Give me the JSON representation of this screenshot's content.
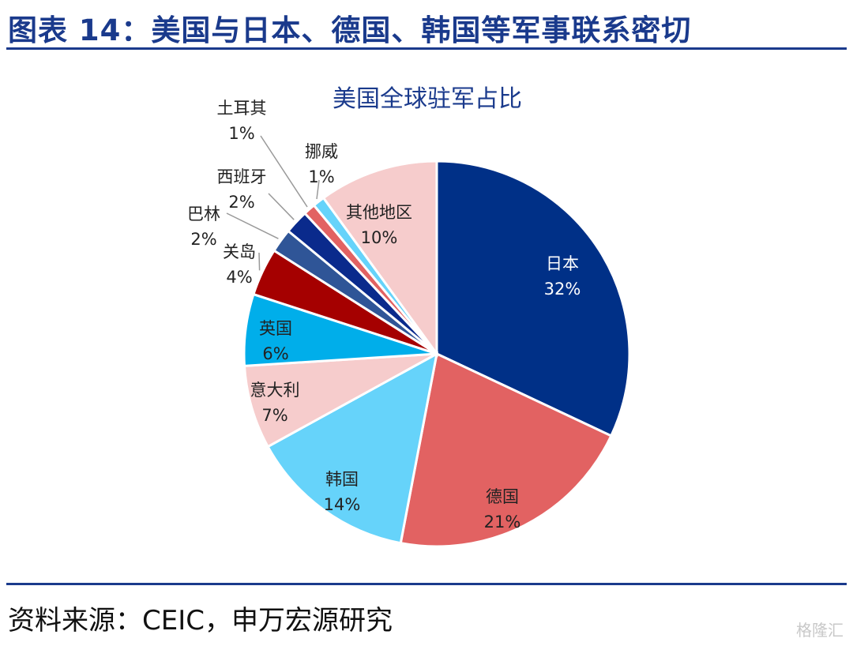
{
  "figure_title": "图表 14：美国与日本、德国、韩国等军事联系密切",
  "source": "资料来源：CEIC，申万宏源研究",
  "watermark": "格隆汇",
  "chart_data": {
    "type": "pie",
    "title": "美国全球驻军占比",
    "start_angle_deg": 0,
    "direction": "clockwise",
    "slices": [
      {
        "label": "日本",
        "value": 32,
        "value_label": "32%",
        "color": "#003087"
      },
      {
        "label": "德国",
        "value": 21,
        "value_label": "21%",
        "color": "#e26262"
      },
      {
        "label": "韩国",
        "value": 14,
        "value_label": "14%",
        "color": "#66d3fa"
      },
      {
        "label": "意大利",
        "value": 7,
        "value_label": "7%",
        "color": "#f6cccc"
      },
      {
        "label": "英国",
        "value": 6,
        "value_label": "6%",
        "color": "#00aeea"
      },
      {
        "label": "关岛",
        "value": 4,
        "value_label": "4%",
        "color": "#a50000"
      },
      {
        "label": "巴林",
        "value": 2,
        "value_label": "2%",
        "color": "#2f5597"
      },
      {
        "label": "西班牙",
        "value": 2,
        "value_label": "2%",
        "color": "#0a2a8c"
      },
      {
        "label": "土耳其",
        "value": 1,
        "value_label": "1%",
        "color": "#e26262"
      },
      {
        "label": "挪威",
        "value": 1,
        "value_label": "1%",
        "color": "#66d3fa"
      },
      {
        "label": "其他地区",
        "value": 10,
        "value_label": "10%",
        "color": "#f6cccc"
      }
    ]
  }
}
